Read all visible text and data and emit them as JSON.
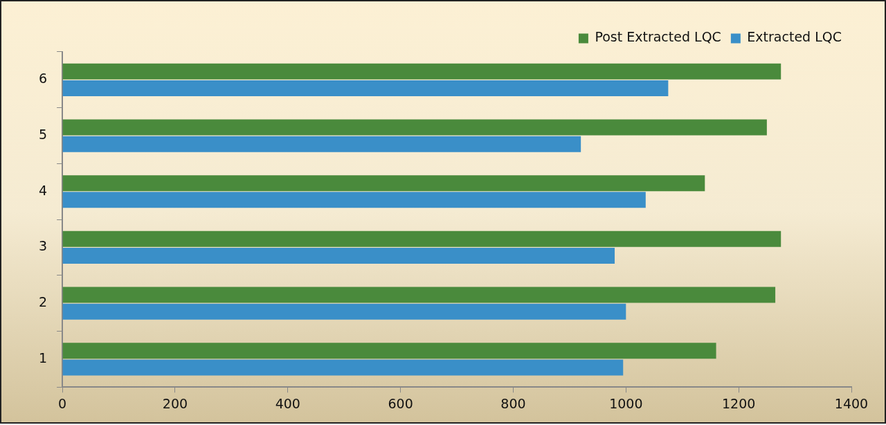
{
  "chart_data": {
    "type": "bar",
    "orientation": "horizontal",
    "categories": [
      "6",
      "5",
      "4",
      "3",
      "2",
      "1"
    ],
    "series": [
      {
        "name": "Post Extracted LQC",
        "color": "#4a8a3c",
        "values": [
          1275,
          1250,
          1140,
          1275,
          1265,
          1160
        ]
      },
      {
        "name": "Extracted LQC",
        "color": "#3a8fc8",
        "values": [
          1075,
          920,
          1035,
          980,
          1000,
          995
        ]
      }
    ],
    "xlim": [
      0,
      1400
    ],
    "xticks": [
      0,
      200,
      400,
      600,
      800,
      1000,
      1200,
      1400
    ],
    "grid": false,
    "legend": "top right"
  }
}
